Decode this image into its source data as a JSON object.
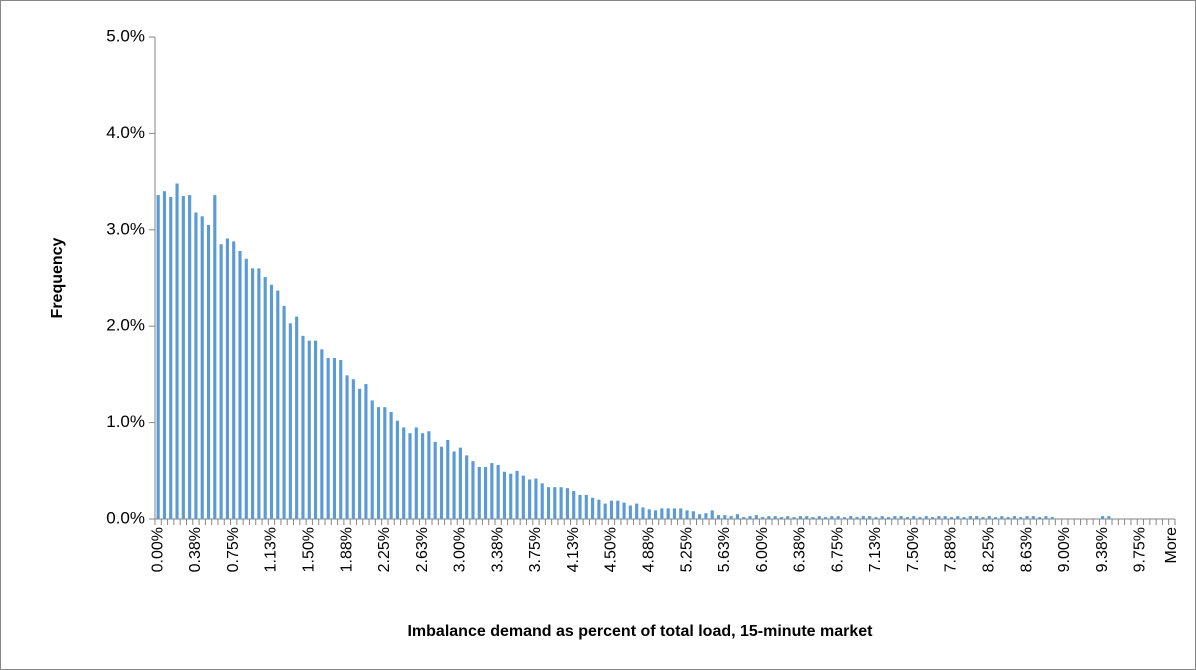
{
  "chart_data": {
    "type": "bar",
    "x_label": "Imbalance  demand as percent of total load, 15-minute market",
    "y_label": "Frequency",
    "color": "#5b9bd5",
    "ylim": [
      0,
      5
    ],
    "yticks": [
      {
        "value": 0,
        "label": "0.0%"
      },
      {
        "value": 1,
        "label": "1.0%"
      },
      {
        "value": 2,
        "label": "2.0%"
      },
      {
        "value": 3,
        "label": "3.0%"
      },
      {
        "value": 4,
        "label": "4.0%"
      },
      {
        "value": 5,
        "label": "5.0%"
      }
    ],
    "categories": [
      "0.00%",
      null,
      null,
      null,
      null,
      null,
      "0.38%",
      null,
      null,
      null,
      null,
      null,
      "0.75%",
      null,
      null,
      null,
      null,
      null,
      "1.13%",
      null,
      null,
      null,
      null,
      null,
      "1.50%",
      null,
      null,
      null,
      null,
      null,
      "1.88%",
      null,
      null,
      null,
      null,
      null,
      "2.25%",
      null,
      null,
      null,
      null,
      null,
      "2.63%",
      null,
      null,
      null,
      null,
      null,
      "3.00%",
      null,
      null,
      null,
      null,
      null,
      "3.38%",
      null,
      null,
      null,
      null,
      null,
      "3.75%",
      null,
      null,
      null,
      null,
      null,
      "4.13%",
      null,
      null,
      null,
      null,
      null,
      "4.50%",
      null,
      null,
      null,
      null,
      null,
      "4.88%",
      null,
      null,
      null,
      null,
      null,
      "5.25%",
      null,
      null,
      null,
      null,
      null,
      "5.63%",
      null,
      null,
      null,
      null,
      null,
      "6.00%",
      null,
      null,
      null,
      null,
      null,
      "6.38%",
      null,
      null,
      null,
      null,
      null,
      "6.75%",
      null,
      null,
      null,
      null,
      null,
      "7.13%",
      null,
      null,
      null,
      null,
      null,
      "7.50%",
      null,
      null,
      null,
      null,
      null,
      "7.88%",
      null,
      null,
      null,
      null,
      null,
      "8.25%",
      null,
      null,
      null,
      null,
      null,
      "8.63%",
      null,
      null,
      null,
      null,
      null,
      "9.00%",
      null,
      null,
      null,
      null,
      null,
      "9.38%",
      null,
      null,
      null,
      null,
      null,
      "9.75%",
      null,
      null,
      null,
      null,
      "More"
    ],
    "values": [
      3.36,
      3.4,
      3.34,
      3.48,
      3.35,
      3.36,
      3.18,
      3.14,
      3.05,
      3.36,
      2.85,
      2.91,
      2.88,
      2.78,
      2.7,
      2.6,
      2.6,
      2.51,
      2.43,
      2.37,
      2.21,
      2.03,
      2.1,
      1.9,
      1.85,
      1.85,
      1.76,
      1.67,
      1.67,
      1.65,
      1.49,
      1.45,
      1.35,
      1.4,
      1.23,
      1.16,
      1.16,
      1.11,
      1.02,
      0.95,
      0.89,
      0.95,
      0.89,
      0.91,
      0.8,
      0.75,
      0.82,
      0.7,
      0.74,
      0.66,
      0.6,
      0.54,
      0.54,
      0.58,
      0.56,
      0.49,
      0.47,
      0.5,
      0.45,
      0.41,
      0.42,
      0.37,
      0.33,
      0.33,
      0.33,
      0.32,
      0.29,
      0.25,
      0.25,
      0.22,
      0.2,
      0.16,
      0.19,
      0.19,
      0.17,
      0.14,
      0.16,
      0.12,
      0.1,
      0.09,
      0.11,
      0.11,
      0.11,
      0.11,
      0.09,
      0.08,
      0.05,
      0.06,
      0.09,
      0.04,
      0.04,
      0.03,
      0.05,
      0.02,
      0.03,
      0.04,
      0.02,
      0.03,
      0.03,
      0.02,
      0.03,
      0.02,
      0.03,
      0.03,
      0.02,
      0.03,
      0.02,
      0.03,
      0.03,
      0.02,
      0.03,
      0.02,
      0.03,
      0.03,
      0.02,
      0.03,
      0.02,
      0.03,
      0.03,
      0.02,
      0.03,
      0.02,
      0.03,
      0.02,
      0.03,
      0.03,
      0.02,
      0.03,
      0.02,
      0.03,
      0.03,
      0.02,
      0.03,
      0.02,
      0.03,
      0.02,
      0.03,
      0.02,
      0.03,
      0.03,
      0.02,
      0.03,
      0.02,
      0,
      0,
      0,
      0,
      0,
      0,
      0,
      0.03,
      0.03,
      0,
      0,
      0,
      0,
      0,
      0,
      0,
      0,
      0,
      0
    ]
  }
}
